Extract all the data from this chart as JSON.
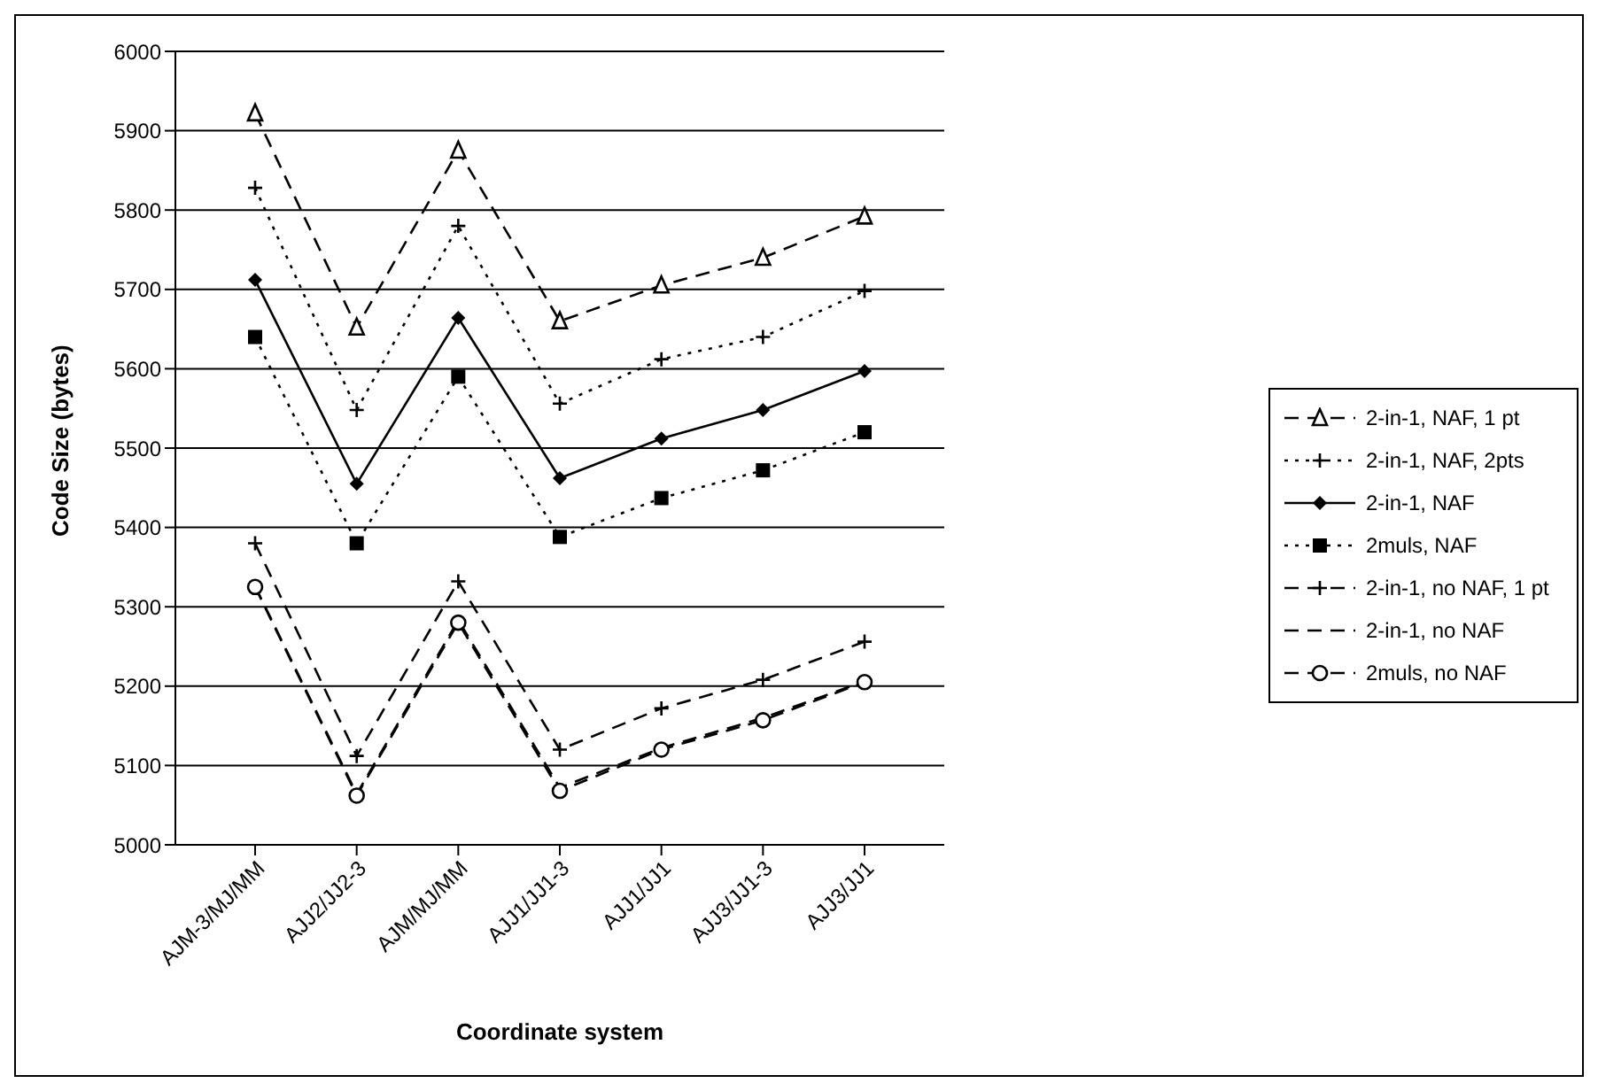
{
  "chart_data": {
    "type": "line",
    "xlabel": "Coordinate system",
    "ylabel": "Code Size (bytes)",
    "categories": [
      "AJM-3/MJ/MM",
      "AJJ2/JJ2-3",
      "AJM/MJ/MM",
      "AJJ1/JJ1-3",
      "AJJ1/JJ1",
      "AJJ3/JJ1-3",
      "AJJ3/JJ1"
    ],
    "ylim": [
      5000,
      6000
    ],
    "yticks": [
      5000,
      5100,
      5200,
      5300,
      5400,
      5500,
      5600,
      5700,
      5800,
      5900,
      6000
    ],
    "grid": "y",
    "legend": "right",
    "series": [
      {
        "name": "2-in-1, NAF, 1 pt",
        "color": "#000000",
        "marker": "triangle",
        "line_style": "dashed",
        "values": [
          5922,
          5652,
          5875,
          5660,
          5705,
          5740,
          5792
        ]
      },
      {
        "name": "2-in-1, NAF, 2pts",
        "color": "#000000",
        "marker": "cross",
        "line_style": "dotted",
        "values": [
          5828,
          5548,
          5780,
          5556,
          5612,
          5640,
          5698
        ]
      },
      {
        "name": "2-in-1, NAF",
        "color": "#000000",
        "marker": "diamond",
        "line_style": "solid",
        "values": [
          5712,
          5455,
          5664,
          5462,
          5512,
          5548,
          5597
        ]
      },
      {
        "name": "2muls, NAF",
        "color": "#000000",
        "marker": "square",
        "line_style": "dotted",
        "values": [
          5640,
          5380,
          5590,
          5388,
          5437,
          5472,
          5520
        ]
      },
      {
        "name": "2-in-1, no NAF, 1 pt",
        "color": "#000000",
        "marker": "cross",
        "line_style": "dashed",
        "values": [
          5380,
          5112,
          5332,
          5120,
          5172,
          5208,
          5256
        ]
      },
      {
        "name": "2-in-1, no NAF",
        "color": "#000000",
        "marker": "none",
        "line_style": "dashed",
        "values": [
          5326,
          5064,
          5283,
          5072,
          5122,
          5160,
          5206
        ]
      },
      {
        "name": "2muls, no NAF",
        "color": "#000000",
        "marker": "circle",
        "line_style": "dashed",
        "values": [
          5325,
          5062,
          5280,
          5068,
          5120,
          5157,
          5205
        ]
      }
    ]
  }
}
